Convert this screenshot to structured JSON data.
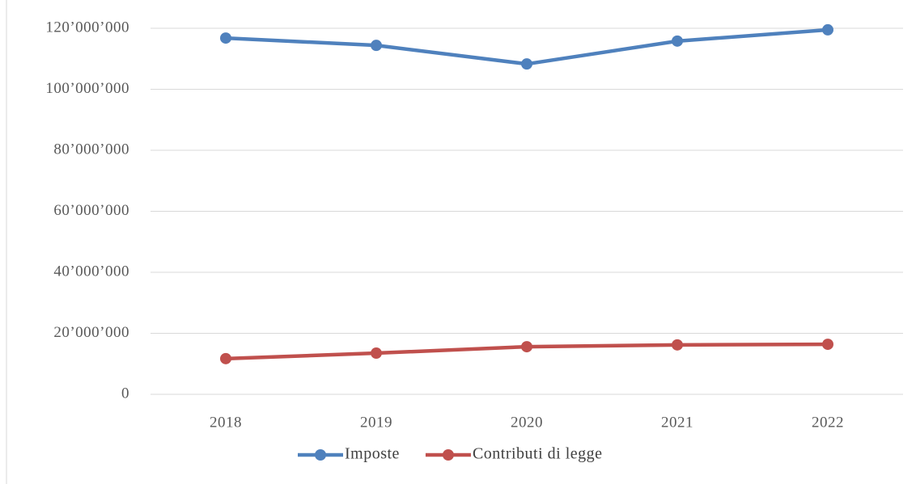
{
  "chart_data": {
    "type": "line",
    "categories": [
      "2018",
      "2019",
      "2020",
      "2021",
      "2022"
    ],
    "series": [
      {
        "name": "Imposte",
        "color": "#4f81bd",
        "values": [
          116800000,
          114400000,
          108300000,
          115800000,
          119500000
        ]
      },
      {
        "name": "Contributi di legge",
        "color": "#c0504d",
        "values": [
          11700000,
          13500000,
          15600000,
          16200000,
          16400000
        ]
      }
    ],
    "ylim": [
      0,
      120000000
    ],
    "yticks": [
      0,
      {
        "value": 20000000,
        "label": "20’000’000"
      },
      {
        "value": 40000000,
        "label": "40’000’000"
      },
      {
        "value": 60000000,
        "label": "60’000’000"
      },
      {
        "value": 80000000,
        "label": "80’000’000"
      },
      {
        "value": 100000000,
        "label": "100’000’000"
      },
      {
        "value": 120000000,
        "label": "120’000’000"
      }
    ],
    "grid": true,
    "legend": "bottom"
  }
}
